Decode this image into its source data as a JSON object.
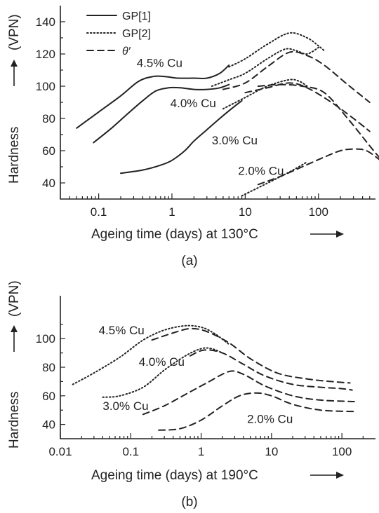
{
  "chart_data": [
    {
      "type": "line",
      "caption": "(a)",
      "xlabel": "Ageing time (days) at 130°C",
      "ylabel": "Hardness",
      "ylabel_unit": "(VPN)",
      "xscale": "log",
      "xlim": [
        0.03,
        600
      ],
      "ylim": [
        30,
        150
      ],
      "xticks": [
        0.1,
        1,
        10,
        100
      ],
      "xtick_labels": [
        "0.1",
        "1",
        "10",
        "100"
      ],
      "yticks": [
        40,
        60,
        80,
        100,
        120,
        140
      ],
      "ytick_labels": [
        "40",
        "60",
        "80",
        "100",
        "120",
        "140"
      ],
      "legend_position": "top-left",
      "legend": [
        {
          "label": "GP[1]",
          "style": "solid"
        },
        {
          "label": "GP[2]",
          "style": "dotted"
        },
        {
          "label": "θ′",
          "style": "dashed"
        }
      ],
      "series": [
        {
          "alloy": "4.5% Cu",
          "phase": "GP[1]",
          "style": "solid",
          "x": [
            0.05,
            0.1,
            0.2,
            0.35,
            0.55,
            0.8,
            1.2,
            2,
            3,
            4.5,
            6
          ],
          "y": [
            74,
            84,
            94,
            103,
            106,
            106,
            105,
            105,
            105,
            108,
            113
          ]
        },
        {
          "alloy": "4.0% Cu",
          "phase": "GP[1]",
          "style": "solid",
          "x": [
            0.085,
            0.15,
            0.25,
            0.4,
            0.6,
            0.9,
            1.3,
            2,
            3,
            4.5,
            6
          ],
          "y": [
            65,
            74,
            83,
            91,
            97,
            99,
            99,
            98,
            98,
            99,
            101
          ]
        },
        {
          "alloy": "3.0% Cu",
          "phase": "GP[1]",
          "style": "solid",
          "x": [
            0.2,
            0.4,
            0.7,
            1,
            1.5,
            2,
            3,
            4.5,
            6.5,
            9
          ],
          "y": [
            46,
            48,
            51,
            54,
            60,
            66,
            73,
            80,
            86,
            91
          ]
        },
        {
          "alloy": "4.5% Cu",
          "phase": "GP[2]",
          "style": "dotted",
          "x": [
            6,
            10,
            20,
            40,
            70,
            100,
            120
          ],
          "y": [
            112,
            117,
            126,
            133,
            130,
            125,
            122
          ]
        },
        {
          "alloy": "4.0% Cu",
          "phase": "GP[2]",
          "style": "dotted",
          "x": [
            3.5,
            6,
            10,
            20,
            35,
            50,
            70,
            100
          ],
          "y": [
            100,
            104,
            108,
            117,
            123,
            122,
            120,
            124
          ]
        },
        {
          "alloy": "3.0% Cu",
          "phase": "GP[2]",
          "style": "dotted",
          "x": [
            5,
            10,
            20,
            40,
            55,
            70
          ],
          "y": [
            86,
            93,
            100,
            104,
            103,
            100
          ]
        },
        {
          "alloy": "2.0% Cu",
          "phase": "GP[2]",
          "style": "dotted",
          "x": [
            9,
            15,
            25,
            45,
            70
          ],
          "y": [
            32,
            37,
            42,
            48,
            53
          ]
        },
        {
          "alloy": "4.5% Cu",
          "phase": "θ′",
          "style": "dashed",
          "x": [
            5,
            10,
            20,
            40,
            70,
            120,
            250,
            500
          ],
          "y": [
            98,
            102,
            112,
            121,
            119,
            113,
            101,
            90
          ]
        },
        {
          "alloy": "4.0% Cu",
          "phase": "θ′",
          "style": "dashed",
          "x": [
            10,
            20,
            40,
            70,
            150,
            300,
            500
          ],
          "y": [
            96,
            99,
            102,
            99,
            90,
            80,
            72
          ]
        },
        {
          "alloy": "3.0% Cu",
          "phase": "θ′",
          "style": "dashed",
          "x": [
            15,
            30,
            60,
            120,
            250,
            500,
            700
          ],
          "y": [
            100,
            101,
            100,
            96,
            80,
            63,
            55
          ]
        },
        {
          "alloy": "2.0% Cu",
          "phase": "θ′",
          "style": "dashed",
          "x": [
            15,
            30,
            60,
            120,
            200,
            300,
            450,
            700
          ],
          "y": [
            39,
            44,
            50,
            56,
            60,
            61,
            60,
            54
          ]
        }
      ],
      "annotations": [
        {
          "text": "4.5% Cu",
          "x": 0.33,
          "y": 112
        },
        {
          "text": "4.0% Cu",
          "x": 0.95,
          "y": 87
        },
        {
          "text": "3.0% Cu",
          "x": 3.5,
          "y": 64
        },
        {
          "text": "2.0% Cu",
          "x": 8,
          "y": 45
        }
      ]
    },
    {
      "type": "line",
      "caption": "(b)",
      "xlabel": "Ageing time (days) at 190°C",
      "ylabel": "Hardness",
      "ylabel_unit": "(VPN)",
      "xscale": "log",
      "xlim": [
        0.01,
        300
      ],
      "ylim": [
        30,
        130
      ],
      "xticks": [
        0.01,
        0.1,
        1,
        10,
        100
      ],
      "xtick_labels": [
        "0.01",
        "0.1",
        "1",
        "10",
        "100"
      ],
      "yticks": [
        40,
        60,
        80,
        100
      ],
      "ytick_labels": [
        "40",
        "60",
        "80",
        "100"
      ],
      "series": [
        {
          "alloy": "4.5% Cu",
          "phase": "GP[2]",
          "style": "dotted",
          "x": [
            0.015,
            0.03,
            0.07,
            0.15,
            0.3,
            0.6,
            1,
            1.5,
            2.5
          ],
          "y": [
            68,
            76,
            87,
            99,
            106,
            109,
            108,
            104,
            96
          ]
        },
        {
          "alloy": "4.0% Cu",
          "phase": "GP[2]",
          "style": "dotted",
          "x": [
            0.04,
            0.07,
            0.15,
            0.3,
            0.6,
            1,
            1.4,
            2
          ],
          "y": [
            59,
            60,
            66,
            78,
            88,
            93,
            93,
            90
          ]
        },
        {
          "alloy": "4.5% Cu",
          "phase": "θ′",
          "style": "dashed",
          "x": [
            0.2,
            0.4,
            0.7,
            1.2,
            2.5,
            5,
            12,
            30,
            70,
            130
          ],
          "y": [
            99,
            104,
            107,
            105,
            97,
            86,
            76,
            72,
            70,
            69
          ]
        },
        {
          "alloy": "4.0% Cu",
          "phase": "θ′",
          "style": "dashed",
          "x": [
            0.7,
            1.1,
            2,
            4,
            8,
            20,
            50,
            100,
            140
          ],
          "y": [
            88,
            92,
            90,
            82,
            74,
            68,
            66,
            65,
            64
          ]
        },
        {
          "alloy": "3.0% Cu",
          "phase": "θ′",
          "style": "dashed",
          "x": [
            0.15,
            0.3,
            0.6,
            1.2,
            2.5,
            4,
            8,
            20,
            50,
            150
          ],
          "y": [
            47,
            53,
            61,
            69,
            77,
            75,
            67,
            60,
            57,
            56
          ]
        },
        {
          "alloy": "2.0% Cu",
          "phase": "θ′",
          "style": "dashed",
          "x": [
            0.25,
            0.5,
            1,
            2,
            3.5,
            6,
            10,
            20,
            50,
            150
          ],
          "y": [
            36,
            37,
            43,
            53,
            60,
            62,
            60,
            54,
            50,
            49
          ]
        }
      ],
      "annotations": [
        {
          "text": "4.5% Cu",
          "x": 0.035,
          "y": 103
        },
        {
          "text": "4.0% Cu",
          "x": 0.13,
          "y": 81
        },
        {
          "text": "3.0% Cu",
          "x": 0.04,
          "y": 50
        },
        {
          "text": "2.0% Cu",
          "x": 4.5,
          "y": 41
        }
      ]
    }
  ]
}
